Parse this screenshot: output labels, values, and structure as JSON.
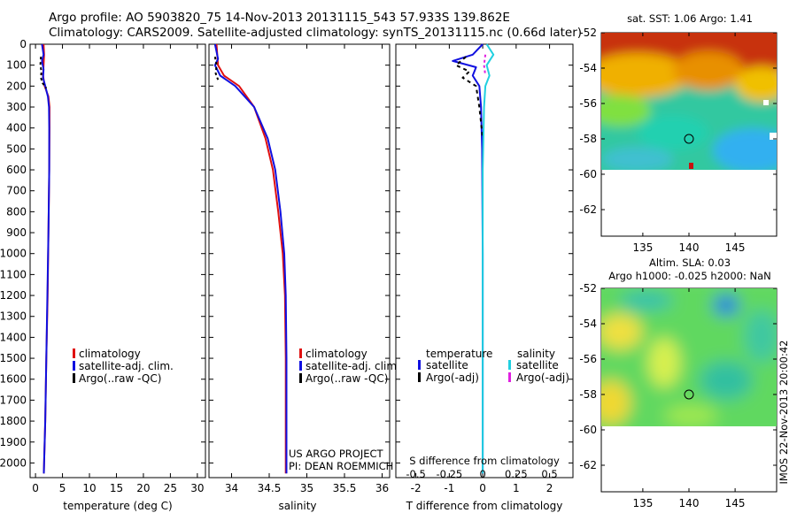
{
  "header": {
    "line1": "Argo profile: AO 5903820_75 14-Nov-2013 20131115_543 57.933S 139.862E",
    "line2": "Climatology: CARS2009. Satellite-adjusted climatology: synTS_20131115.nc (0.66d later)"
  },
  "colors": {
    "climatology": "#e01010",
    "satellite": "#1010e0",
    "argo": "#000000",
    "sat_salinity": "#20d0e0",
    "argo_salinity": "#e020e0"
  },
  "legend": {
    "climatology": "climatology",
    "satellite_adj": "satellite-adj. clim.",
    "argo": "Argo(..raw -QC)",
    "diff_temperature_head": "temperature",
    "diff_salinity_head": "salinity",
    "diff_satellite": "satellite",
    "diff_argo_adj": "Argo(-adj)"
  },
  "project": {
    "line1": "US ARGO PROJECT",
    "line2": "PI: DEAN ROEMMICH"
  },
  "sst_map": {
    "title": "sat. SST: 1.06 Argo: 1.41",
    "icon": "sst-heatmap"
  },
  "sla_map": {
    "title1": "Altim. SLA: 0.03",
    "title2": "Argo h1000: -0.025 h2000: NaN",
    "icon": "sla-heatmap"
  },
  "side_stamp": "IMOS 22-Nov-2013 20:00:42",
  "chart_data": [
    {
      "type": "line",
      "name": "temperature-profile",
      "xlabel": "temperature (deg C)",
      "ylabel": "",
      "xlim": [
        -1,
        31.5
      ],
      "ylim": [
        2070,
        0
      ],
      "xticks": [
        0,
        5,
        10,
        15,
        20,
        25,
        30
      ],
      "xtick_labels": [
        "0",
        "5",
        "10",
        "15",
        "20",
        "25",
        "30"
      ],
      "yticks": [
        0,
        100,
        200,
        300,
        400,
        500,
        600,
        700,
        800,
        900,
        1000,
        1100,
        1200,
        1300,
        1400,
        1500,
        1600,
        1700,
        1800,
        1900,
        2000
      ],
      "ytick_labels": [
        "0",
        "100",
        "200",
        "300",
        "400",
        "500",
        "600",
        "700",
        "800",
        "900",
        "1000",
        "1100",
        "1200",
        "1300",
        "1400",
        "1500",
        "1600",
        "1700",
        "1800",
        "1900",
        "2000"
      ],
      "series": [
        {
          "name": "climatology",
          "color": "#e01010",
          "width": 2,
          "dash": "",
          "points": [
            [
              1.5,
              0
            ],
            [
              1.6,
              50
            ],
            [
              1.5,
              100
            ],
            [
              1.4,
              150
            ],
            [
              1.7,
              200
            ],
            [
              2.4,
              250
            ],
            [
              2.6,
              300
            ],
            [
              2.6,
              400
            ],
            [
              2.55,
              600
            ],
            [
              2.4,
              900
            ],
            [
              2.25,
              1200
            ],
            [
              2.0,
              1500
            ],
            [
              1.8,
              1800
            ],
            [
              1.6,
              2000
            ],
            [
              1.55,
              2050
            ]
          ]
        },
        {
          "name": "satellite-adj. clim.",
          "color": "#1010e0",
          "width": 2,
          "dash": "",
          "points": [
            [
              1.2,
              0
            ],
            [
              1.5,
              50
            ],
            [
              1.2,
              80
            ],
            [
              1.5,
              120
            ],
            [
              1.4,
              160
            ],
            [
              1.8,
              200
            ],
            [
              2.3,
              250
            ],
            [
              2.5,
              300
            ],
            [
              2.55,
              400
            ],
            [
              2.55,
              600
            ],
            [
              2.4,
              900
            ],
            [
              2.2,
              1200
            ],
            [
              2.0,
              1500
            ],
            [
              1.8,
              1800
            ],
            [
              1.6,
              2000
            ],
            [
              1.55,
              2050
            ]
          ]
        },
        {
          "name": "Argo(..raw -QC)",
          "color": "#000000",
          "width": 2,
          "dash": "3,3",
          "points": [
            [
              1.0,
              60
            ],
            [
              0.9,
              100
            ],
            [
              1.1,
              130
            ],
            [
              1.0,
              160
            ],
            [
              1.3,
              185
            ],
            [
              2.0,
              210
            ]
          ]
        }
      ]
    },
    {
      "type": "line",
      "name": "salinity-profile",
      "xlabel": "salinity",
      "ylabel": "",
      "xlim": [
        33.7,
        36.1
      ],
      "ylim": [
        2070,
        0
      ],
      "xticks": [
        34,
        34.5,
        35,
        35.5,
        36
      ],
      "xtick_labels": [
        "34",
        "34.5",
        "35",
        "35.5",
        "36"
      ],
      "series": [
        {
          "name": "climatology",
          "color": "#e01010",
          "width": 2,
          "dash": "",
          "points": [
            [
              33.8,
              0
            ],
            [
              33.82,
              100
            ],
            [
              33.9,
              150
            ],
            [
              34.1,
              200
            ],
            [
              34.3,
              300
            ],
            [
              34.45,
              450
            ],
            [
              34.55,
              600
            ],
            [
              34.62,
              800
            ],
            [
              34.68,
              1000
            ],
            [
              34.71,
              1200
            ],
            [
              34.72,
              1500
            ],
            [
              34.72,
              2050
            ]
          ]
        },
        {
          "name": "satellite-adj. clim.",
          "color": "#1010e0",
          "width": 2,
          "dash": "",
          "points": [
            [
              33.78,
              0
            ],
            [
              33.82,
              70
            ],
            [
              33.78,
              100
            ],
            [
              33.85,
              150
            ],
            [
              34.05,
              200
            ],
            [
              34.3,
              300
            ],
            [
              34.48,
              450
            ],
            [
              34.58,
              600
            ],
            [
              34.65,
              800
            ],
            [
              34.7,
              1000
            ],
            [
              34.72,
              1200
            ],
            [
              34.73,
              1500
            ],
            [
              34.73,
              2050
            ]
          ]
        },
        {
          "name": "Argo(..raw -QC)",
          "color": "#000000",
          "width": 2,
          "dash": "3,3",
          "points": [
            [
              33.78,
              60
            ],
            [
              33.8,
              100
            ],
            [
              33.79,
              140
            ],
            [
              33.82,
              170
            ]
          ]
        }
      ]
    },
    {
      "type": "line",
      "name": "difference-profile",
      "xlabel": "T difference from climatology",
      "xlabel_top": "S difference from climatology",
      "xlim": [
        -2.6,
        2.7
      ],
      "ylim": [
        2070,
        0
      ],
      "xticks": [
        -2,
        -1,
        0,
        1,
        2
      ],
      "xtick_labels": [
        "-2",
        "-1",
        "0",
        "1",
        "2"
      ],
      "sticks": [
        -0.5,
        -0.25,
        0,
        0.25,
        0.5
      ],
      "stick_labels": [
        "-0.5",
        "-0.25",
        "0",
        "0.25",
        "0.5"
      ],
      "s_scale": 4,
      "series": [
        {
          "name": "temperature satellite",
          "color": "#1010e0",
          "width": 2,
          "dash": "",
          "scale": 1,
          "points": [
            [
              0,
              0
            ],
            [
              -0.3,
              50
            ],
            [
              -0.9,
              80
            ],
            [
              -0.2,
              110
            ],
            [
              -0.3,
              150
            ],
            [
              -0.1,
              200
            ],
            [
              -0.05,
              300
            ],
            [
              -0.02,
              500
            ],
            [
              0,
              1000
            ],
            [
              0,
              2050
            ]
          ]
        },
        {
          "name": "temperature Argo(-adj)",
          "color": "#000000",
          "width": 2,
          "dash": "4,4",
          "scale": 1,
          "points": [
            [
              -0.5,
              60
            ],
            [
              -0.8,
              100
            ],
            [
              -0.4,
              130
            ],
            [
              -0.6,
              160
            ],
            [
              -0.2,
              200
            ],
            [
              -0.1,
              300
            ],
            [
              0,
              450
            ]
          ]
        },
        {
          "name": "salinity satellite",
          "color": "#20d0e0",
          "width": 2,
          "dash": "",
          "scale": 4,
          "points": [
            [
              0.03,
              0
            ],
            [
              0.08,
              50
            ],
            [
              0.03,
              100
            ],
            [
              0.05,
              150
            ],
            [
              0.02,
              200
            ],
            [
              0.01,
              300
            ],
            [
              0,
              600
            ],
            [
              0,
              2050
            ]
          ]
        },
        {
          "name": "salinity Argo(-adj)",
          "color": "#e020e0",
          "width": 2,
          "dash": "3,3",
          "scale": 4,
          "points": [
            [
              0.02,
              50
            ],
            [
              0.01,
              100
            ],
            [
              0.02,
              150
            ]
          ]
        }
      ]
    },
    {
      "type": "heatmap",
      "name": "sst-map",
      "xlim": [
        130.5,
        149.5
      ],
      "ylim": [
        -63.5,
        -52
      ],
      "xticks": [
        135,
        140,
        145
      ],
      "xtick_labels": [
        "135",
        "140",
        "145"
      ],
      "yticks": [
        -52,
        -54,
        -56,
        -58,
        -60,
        -62
      ],
      "ytick_labels": [
        "-52",
        "-54",
        "-56",
        "-58",
        "-60",
        "-62"
      ],
      "data_ylim": [
        -60,
        -52
      ],
      "marker": [
        140,
        -58
      ]
    },
    {
      "type": "heatmap",
      "name": "sla-map",
      "xlim": [
        130.5,
        149.5
      ],
      "ylim": [
        -63.5,
        -52
      ],
      "xticks": [
        135,
        140,
        145
      ],
      "xtick_labels": [
        "135",
        "140",
        "145"
      ],
      "yticks": [
        -52,
        -54,
        -56,
        -58,
        -60,
        -62
      ],
      "ytick_labels": [
        "-52",
        "-54",
        "-56",
        "-58",
        "-60",
        "-62"
      ],
      "data_ylim": [
        -60,
        -52
      ],
      "marker": [
        140,
        -58
      ]
    }
  ]
}
